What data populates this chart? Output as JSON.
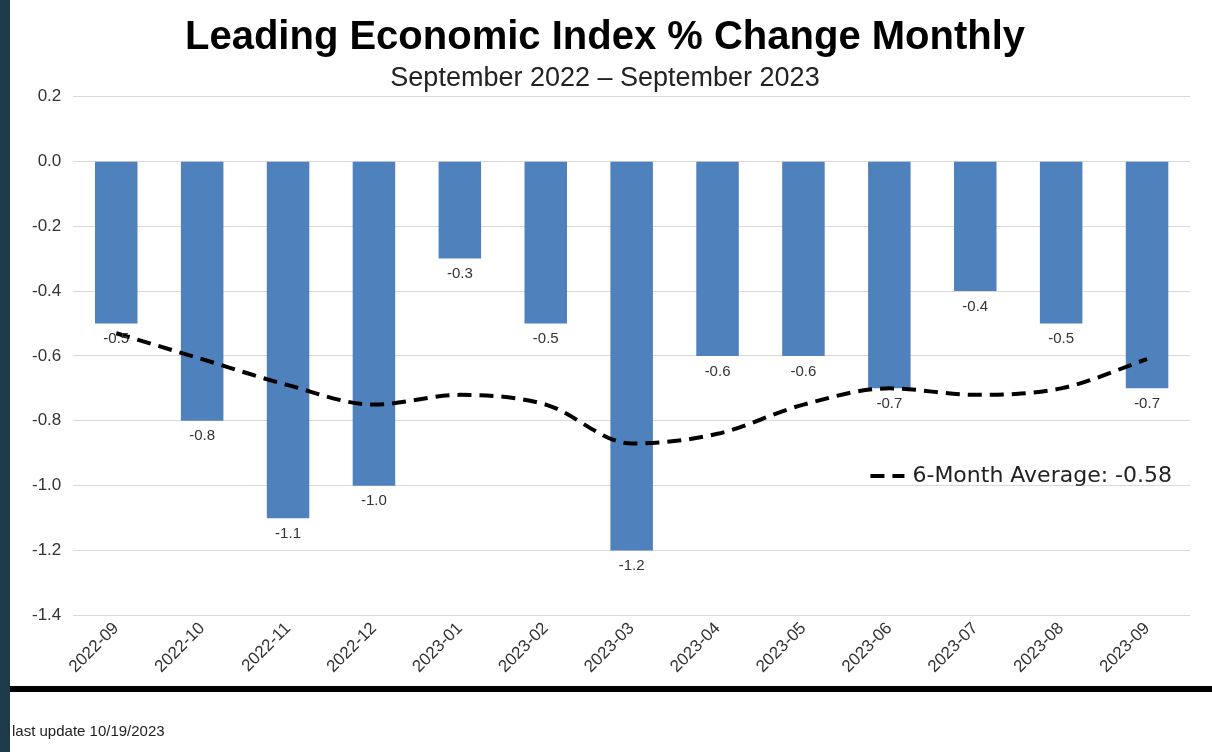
{
  "chart_data": {
    "type": "bar",
    "title": "Leading Economic Index % Change Monthly",
    "subtitle": "September 2022 – September 2023",
    "categories": [
      "2022-09",
      "2022-10",
      "2022-11",
      "2022-12",
      "2023-01",
      "2023-02",
      "2023-03",
      "2023-04",
      "2023-05",
      "2023-06",
      "2023-07",
      "2023-08",
      "2023-09"
    ],
    "series": [
      {
        "color": "#4f81bd",
        "values": [
          -0.5,
          -0.8,
          -1.1,
          -1.0,
          -0.3,
          -0.5,
          -1.2,
          -0.6,
          -0.6,
          -0.7,
          -0.4,
          -0.5,
          -0.7
        ],
        "value_labels": [
          "-0.5",
          "-0.8",
          "-1.1",
          "-1.0",
          "-0.3",
          "-0.5",
          "-1.2",
          "-0.6",
          "-0.6",
          "-0.7",
          "-0.4",
          "-0.5",
          "-0.7"
        ]
      },
      {
        "type": "line",
        "name": "6-Month Average: -0.58",
        "color": "#000000",
        "line_style": "dashed",
        "marker": "none",
        "values": [
          -0.53,
          -0.61,
          -0.69,
          -0.75,
          -0.72,
          -0.75,
          -0.87,
          -0.84,
          -0.75,
          -0.7,
          -0.72,
          -0.7,
          -0.61
        ]
      }
    ],
    "ylim": [
      -1.4,
      0.2
    ],
    "yticks": [
      0.2,
      {
        "value": 0,
        "label": "0.0"
      },
      -0.2,
      -0.4,
      -0.6,
      -0.8,
      {
        "value": -1,
        "label": "-1.0"
      },
      -1.2,
      -1.4
    ],
    "grid": "y",
    "legend": "right",
    "annotations": [
      "last update 10/19/2023"
    ]
  }
}
